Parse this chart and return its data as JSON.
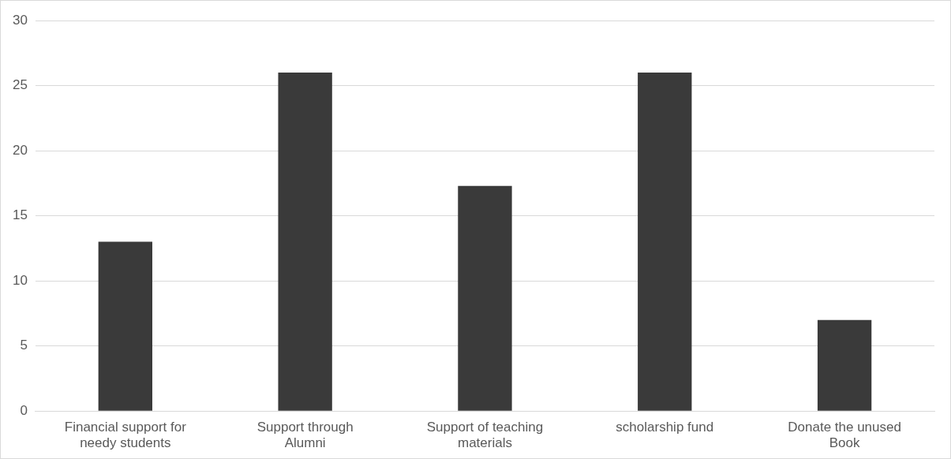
{
  "chart_data": {
    "type": "bar",
    "categories": [
      "Financial support for needy students",
      "Support through Alumni",
      "Support of teaching materials",
      "scholarship fund",
      "Donate the unused Book"
    ],
    "values": [
      13,
      26,
      17.3,
      26,
      7
    ],
    "color": "#3a3a3a",
    "ylim": [
      0,
      30
    ],
    "yticks": [
      0,
      5,
      10,
      15,
      20,
      25,
      30
    ],
    "grid": "y",
    "legend": false
  }
}
